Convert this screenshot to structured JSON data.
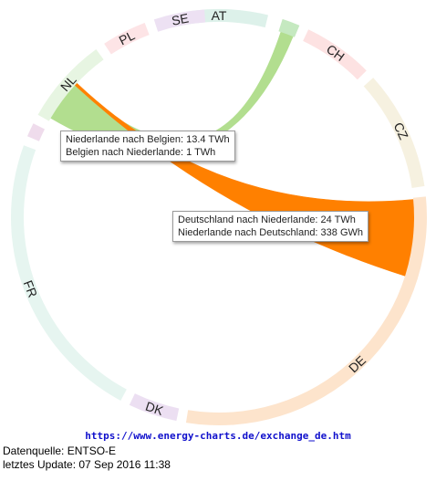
{
  "chart_data": {
    "type": "chord",
    "title": "",
    "unit": "TWh",
    "segments": [
      {
        "id": "AT",
        "label": "AT",
        "start": -13.7,
        "end": 13.7,
        "color": "#ddf1ea"
      },
      {
        "id": "SX",
        "label": "",
        "start": 17.8,
        "end": 22.8,
        "color": "#c5e9c0"
      },
      {
        "id": "CH",
        "label": "CH",
        "start": 25.5,
        "end": 45.2,
        "color": "#fde2e2"
      },
      {
        "id": "CZ",
        "label": "CZ",
        "start": 47.9,
        "end": 81.4,
        "color": "#f6f1e0"
      },
      {
        "id": "DE",
        "label": "DE",
        "start": 84.3,
        "end": 189.1,
        "color": "#fde4cc"
      },
      {
        "id": "DK",
        "label": "DK",
        "start": 191.8,
        "end": 205.5,
        "color": "#ecdff2"
      },
      {
        "id": "FR",
        "label": "FR",
        "start": 208.2,
        "end": 290.2,
        "color": "#e6f5f0"
      },
      {
        "id": "BE",
        "label": "",
        "start": 292.9,
        "end": 296.8,
        "color": "#efdcec"
      },
      {
        "id": "NL",
        "label": "NL",
        "start": 299.5,
        "end": 323.8,
        "color": "#e7f5e2"
      },
      {
        "id": "PL",
        "label": "PL",
        "start": 326.5,
        "end": 339.1,
        "color": "#fde4e6"
      },
      {
        "id": "SE",
        "label": "SE",
        "start": 341.8,
        "end": 356.0,
        "color": "#ede1f3"
      }
    ],
    "ribbons": [
      {
        "from": "NL",
        "to": "SX",
        "source_span": [
          300.5,
          312.5
        ],
        "target_span": [
          18.5,
          22.3
        ],
        "color": "#b2de8f"
      },
      {
        "from": "DE",
        "to": "NL",
        "source_span": [
          84.8,
          107.5
        ],
        "target_span": [
          312.5,
          313.3
        ],
        "color": "#ff8000"
      }
    ],
    "tooltips": [
      {
        "line1": "Niederlande nach Belgien: 13.4 TWh",
        "line2": "Belgien nach Niederlande: 1 TWh"
      },
      {
        "line1": "Deutschland nach Niederlande: 24 TWh",
        "line2": "Niederlande nach Deutschland: 338 GWh"
      }
    ]
  },
  "footer": {
    "url": "https://www.energy-charts.de/exchange_de.htm",
    "source": "Datenquelle: ENTSO-E",
    "updated": "letztes Update: 07 Sep 2016 11:38"
  }
}
